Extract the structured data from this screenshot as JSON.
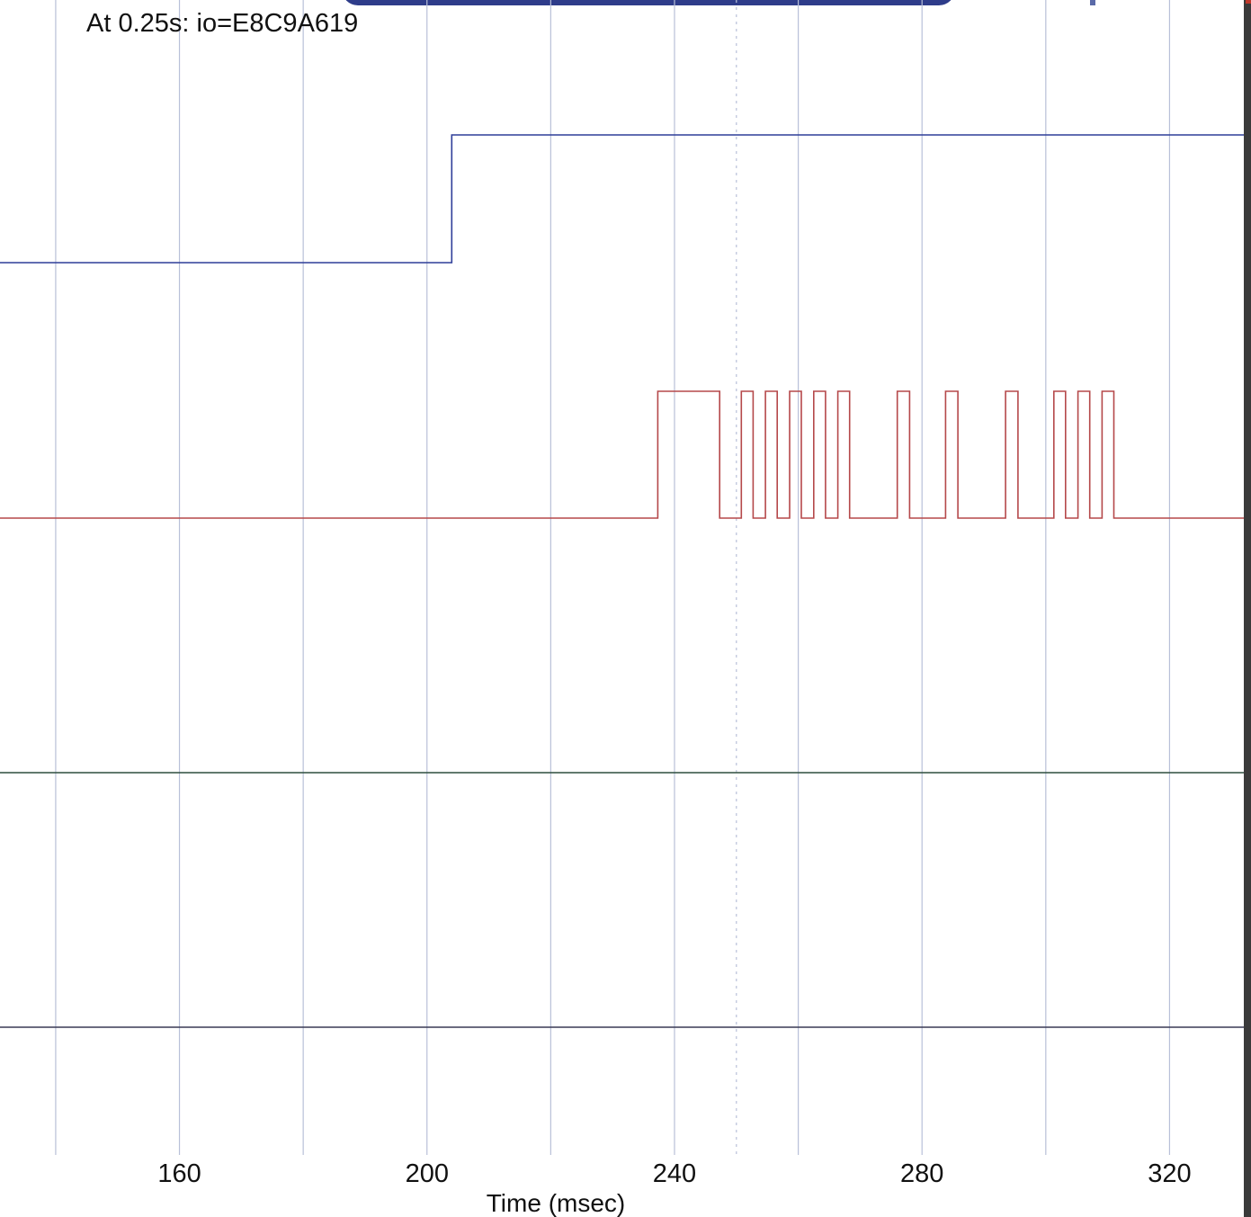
{
  "readout": {
    "text": "At 0.25s:  io=E8C9A619"
  },
  "chart_data": {
    "type": "line",
    "step": true,
    "title": "",
    "xlabel": "Time (msec)",
    "ylabel": "",
    "xlim": [
      131,
      332
    ],
    "xticks": [
      160,
      200,
      240,
      280,
      320
    ],
    "x_gridlines": [
      140,
      160,
      180,
      200,
      220,
      240,
      250,
      260,
      280,
      300,
      320
    ],
    "grid": true,
    "series": [
      {
        "color": "#2f3f99",
        "level": [
          0,
          1
        ],
        "points": [
          {
            "x": 131,
            "y": 0
          },
          {
            "x": 204,
            "y": 0
          },
          {
            "x": 204,
            "y": 1
          },
          {
            "x": 332,
            "y": 1
          }
        ]
      },
      {
        "color": "#b5484a",
        "level": [
          0,
          1
        ],
        "points": [
          {
            "x": 131,
            "y": 0
          },
          {
            "x": 237.3,
            "y": 0
          },
          {
            "x": 237.3,
            "y": 1
          },
          {
            "x": 247.3,
            "y": 1
          },
          {
            "x": 247.3,
            "y": 0
          },
          {
            "x": 250.8,
            "y": 0
          },
          {
            "x": 250.8,
            "y": 1
          },
          {
            "x": 252.7,
            "y": 1
          },
          {
            "x": 252.7,
            "y": 0
          },
          {
            "x": 254.7,
            "y": 0
          },
          {
            "x": 254.7,
            "y": 1
          },
          {
            "x": 256.6,
            "y": 1
          },
          {
            "x": 256.6,
            "y": 0
          },
          {
            "x": 258.6,
            "y": 0
          },
          {
            "x": 258.6,
            "y": 1
          },
          {
            "x": 260.5,
            "y": 1
          },
          {
            "x": 260.5,
            "y": 0
          },
          {
            "x": 262.5,
            "y": 0
          },
          {
            "x": 262.5,
            "y": 1
          },
          {
            "x": 264.4,
            "y": 1
          },
          {
            "x": 264.4,
            "y": 0
          },
          {
            "x": 266.4,
            "y": 0
          },
          {
            "x": 266.4,
            "y": 1
          },
          {
            "x": 268.3,
            "y": 1
          },
          {
            "x": 268.3,
            "y": 0
          },
          {
            "x": 276.0,
            "y": 0
          },
          {
            "x": 276.0,
            "y": 1
          },
          {
            "x": 278.0,
            "y": 1
          },
          {
            "x": 278.0,
            "y": 0
          },
          {
            "x": 283.8,
            "y": 0
          },
          {
            "x": 283.8,
            "y": 1
          },
          {
            "x": 285.8,
            "y": 1
          },
          {
            "x": 285.8,
            "y": 0
          },
          {
            "x": 293.5,
            "y": 0
          },
          {
            "x": 293.5,
            "y": 1
          },
          {
            "x": 295.5,
            "y": 1
          },
          {
            "x": 295.5,
            "y": 0
          },
          {
            "x": 301.3,
            "y": 0
          },
          {
            "x": 301.3,
            "y": 1
          },
          {
            "x": 303.2,
            "y": 1
          },
          {
            "x": 303.2,
            "y": 0
          },
          {
            "x": 305.2,
            "y": 0
          },
          {
            "x": 305.2,
            "y": 1
          },
          {
            "x": 307.1,
            "y": 1
          },
          {
            "x": 307.1,
            "y": 0
          },
          {
            "x": 309.1,
            "y": 0
          },
          {
            "x": 309.1,
            "y": 1
          },
          {
            "x": 311.0,
            "y": 1
          },
          {
            "x": 311.0,
            "y": 0
          },
          {
            "x": 332,
            "y": 0
          }
        ]
      },
      {
        "color": "#2f4f3f",
        "level": [
          0,
          1
        ],
        "points": [
          {
            "x": 131,
            "y": 0
          },
          {
            "x": 332,
            "y": 0
          }
        ]
      },
      {
        "color": "#3a3a55",
        "level": [
          0,
          1
        ],
        "points": [
          {
            "x": 131,
            "y": 0
          },
          {
            "x": 332,
            "y": 0
          }
        ]
      }
    ]
  }
}
